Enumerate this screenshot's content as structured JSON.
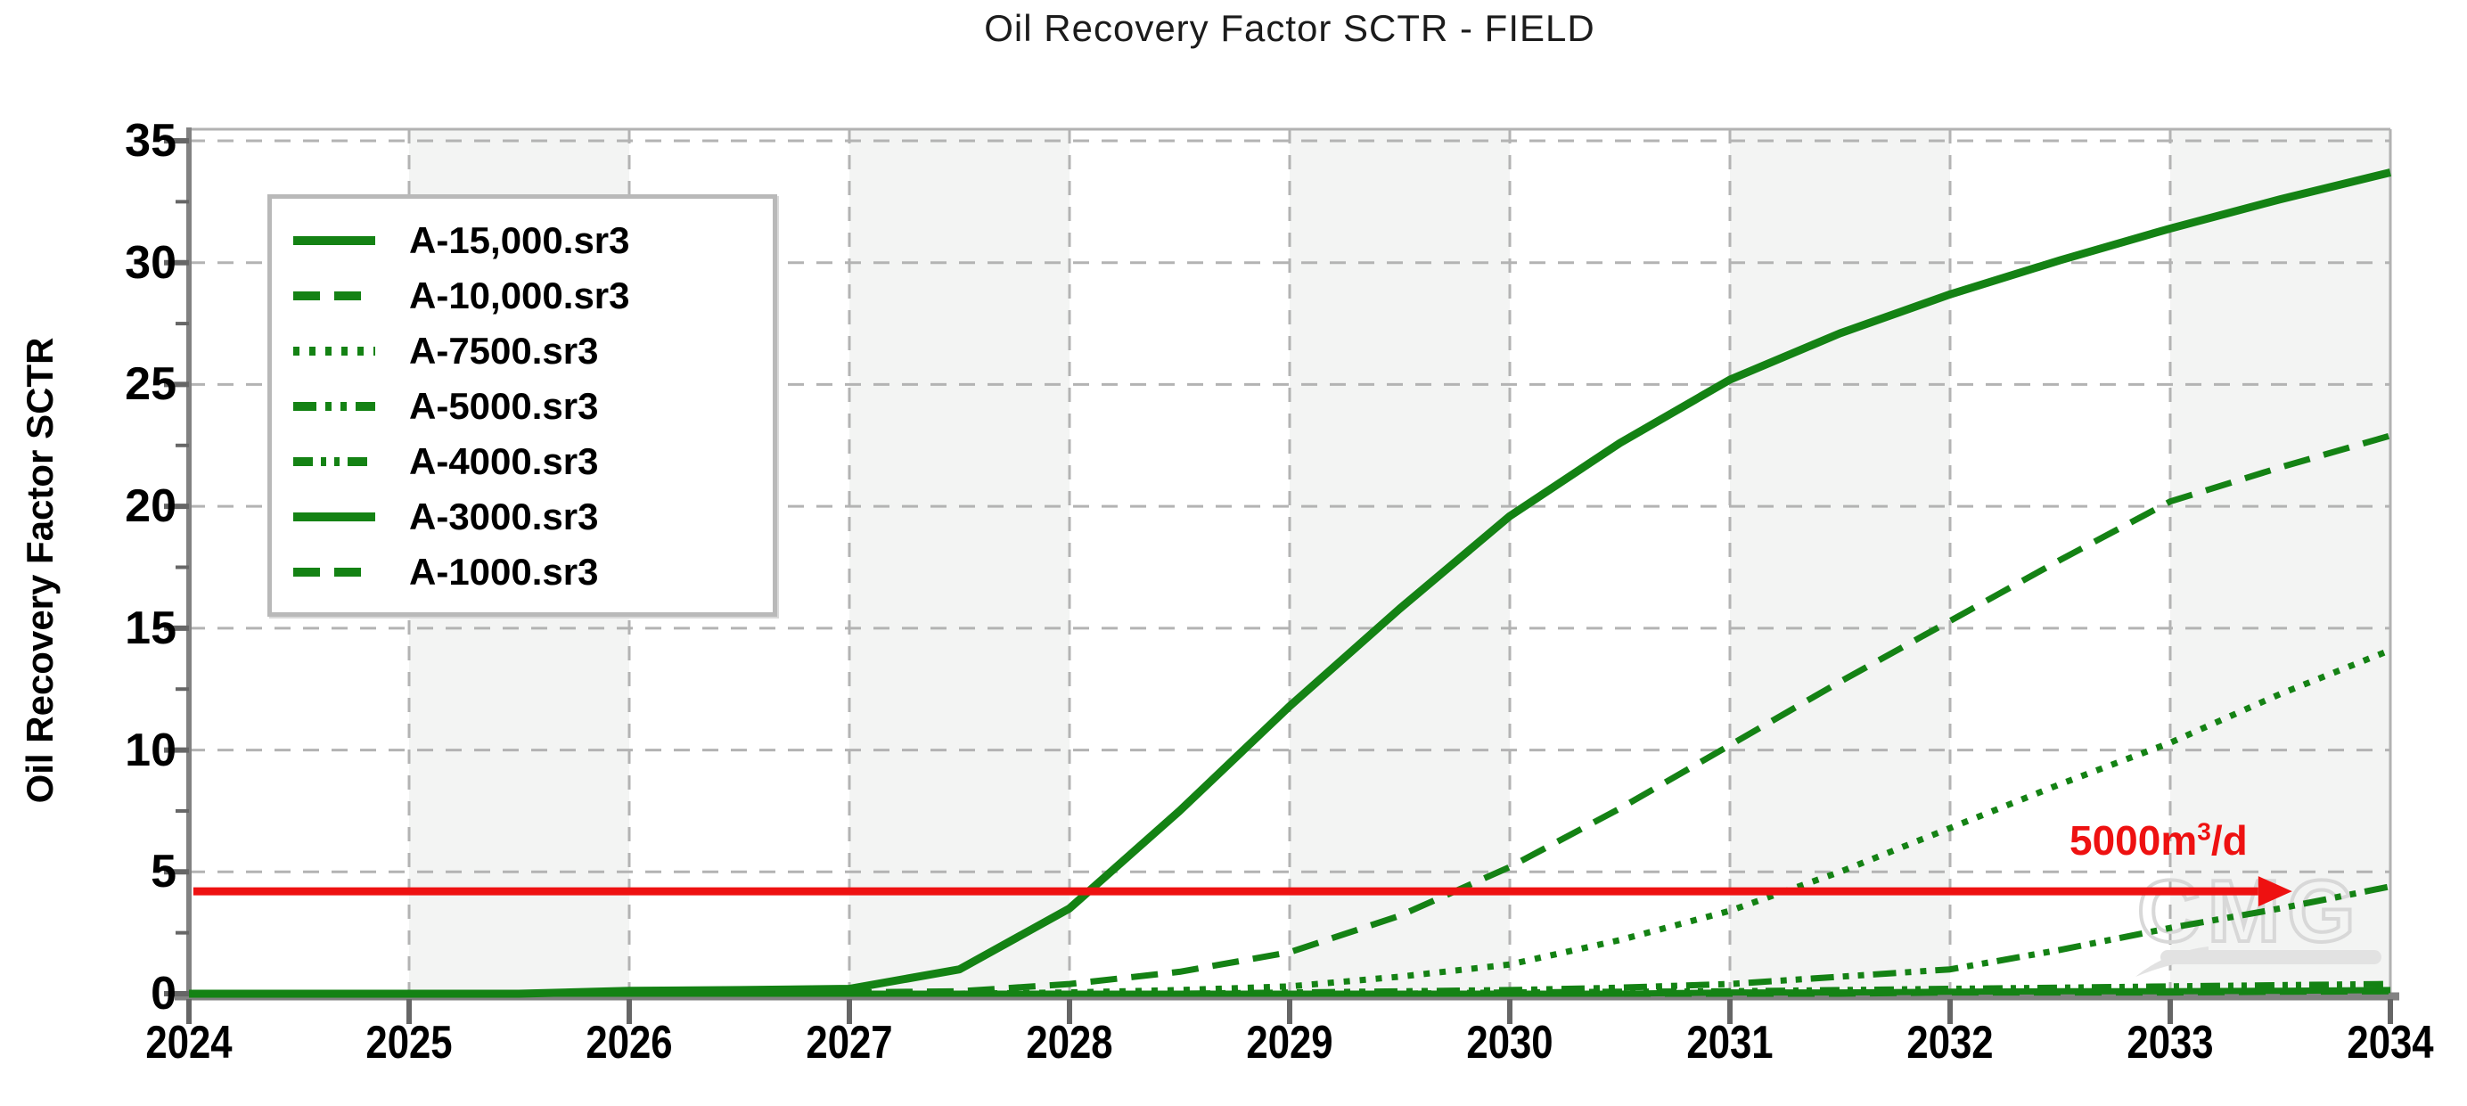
{
  "page": {
    "title": "Oil Recovery Factor SCTR - FIELD"
  },
  "colors": {
    "series_green": "#148214",
    "annotation_red": "#ee1111",
    "grid": "#b3b3b3",
    "band": "#f3f4f3",
    "axis": "#828282",
    "plot_border": "#b2b2b2",
    "tick": "#666666",
    "watermark_gray": "#d8d8d8",
    "text": "#000000"
  },
  "watermark": {
    "text": "CMG"
  },
  "chart_data": {
    "type": "line",
    "title": "Oil Recovery Factor SCTR - FIELD",
    "xlabel": "",
    "ylabel": "Oil Recovery Factor SCTR",
    "xlim": [
      2024,
      2034
    ],
    "ylim": [
      0,
      35
    ],
    "x_ticks": [
      2024,
      2025,
      2026,
      2027,
      2028,
      2029,
      2030,
      2031,
      2032,
      2033,
      2034
    ],
    "y_ticks": [
      0,
      5,
      10,
      15,
      20,
      25,
      30,
      35
    ],
    "y_minor_tick_step": 2.5,
    "grid": "dashed gray, vertical at each year, horizontal every 5 units",
    "shaded_year_bands": [
      [
        2025,
        2026
      ],
      [
        2027,
        2028
      ],
      [
        2029,
        2030
      ],
      [
        2031,
        2032
      ],
      [
        2033,
        2034
      ]
    ],
    "legend_position": "upper-left",
    "x": [
      2024,
      2024.5,
      2025,
      2025.5,
      2026,
      2026.5,
      2027,
      2027.5,
      2028,
      2028.5,
      2029,
      2029.5,
      2030,
      2030.5,
      2031,
      2031.5,
      2032,
      2032.5,
      2033,
      2033.5,
      2034
    ],
    "series": [
      {
        "name": "A-15,000.sr3",
        "style": "solid",
        "width": 9,
        "dash": "",
        "values": [
          0,
          0,
          0,
          0,
          0.12,
          0.15,
          0.2,
          1.0,
          3.5,
          7.5,
          11.8,
          15.8,
          19.6,
          22.6,
          25.2,
          27.1,
          28.7,
          30.1,
          31.4,
          32.6,
          33.7
        ]
      },
      {
        "name": "A-10,000.sr3",
        "style": "dashed",
        "width": 7,
        "dash": "30 16",
        "values": [
          0,
          0,
          0,
          0,
          0,
          0,
          0.05,
          0.1,
          0.4,
          0.9,
          1.7,
          3.2,
          5.2,
          7.6,
          10.2,
          12.8,
          15.3,
          17.8,
          20.2,
          21.6,
          22.9
        ]
      },
      {
        "name": "A-7500.sr3",
        "style": "dotted",
        "width": 7,
        "dash": "7 11",
        "values": [
          0,
          0,
          0,
          0,
          0,
          0,
          0,
          0,
          0.05,
          0.15,
          0.3,
          0.7,
          1.2,
          2.2,
          3.4,
          5.0,
          6.8,
          8.6,
          10.3,
          12.3,
          14.1
        ]
      },
      {
        "name": "A-5000.sr3",
        "style": "dash-dot-dot",
        "width": 7,
        "dash": "26 10 7 10 7 10",
        "values": [
          0,
          0,
          0,
          0,
          0,
          0,
          0,
          0,
          0,
          0,
          0.05,
          0.1,
          0.15,
          0.25,
          0.4,
          0.7,
          1.0,
          1.8,
          2.7,
          3.5,
          4.4
        ]
      },
      {
        "name": "A-4000.sr3",
        "style": "dash-dot-dot",
        "width": 7,
        "dash": "22 9 6 9 6 9",
        "values": [
          0,
          0,
          0,
          0,
          0,
          0,
          0,
          0,
          0,
          0,
          0,
          0,
          0.05,
          0.08,
          0.1,
          0.15,
          0.2,
          0.25,
          0.3,
          0.35,
          0.4
        ]
      },
      {
        "name": "A-3000.sr3",
        "style": "solid",
        "width": 7,
        "dash": "",
        "values": [
          0,
          0,
          0,
          0,
          0,
          0,
          0,
          0,
          0,
          0,
          0,
          0,
          0,
          0,
          0.05,
          0.05,
          0.08,
          0.1,
          0.1,
          0.12,
          0.15
        ]
      },
      {
        "name": "A-1000.sr3",
        "style": "dashed",
        "width": 7,
        "dash": "30 16",
        "values": [
          0,
          0,
          0,
          0,
          0,
          0,
          0,
          0,
          0,
          0,
          0,
          0,
          0,
          0,
          0,
          0,
          0.05,
          0.05,
          0.05,
          0.08,
          0.1
        ]
      }
    ],
    "annotation": {
      "prefix": "5000m",
      "sup": "3",
      "suffix": "/d",
      "arrow_y_value": 4.2,
      "arrow_x_start_year": 2024.02,
      "arrow_x_end_year": 2033.4
    }
  }
}
